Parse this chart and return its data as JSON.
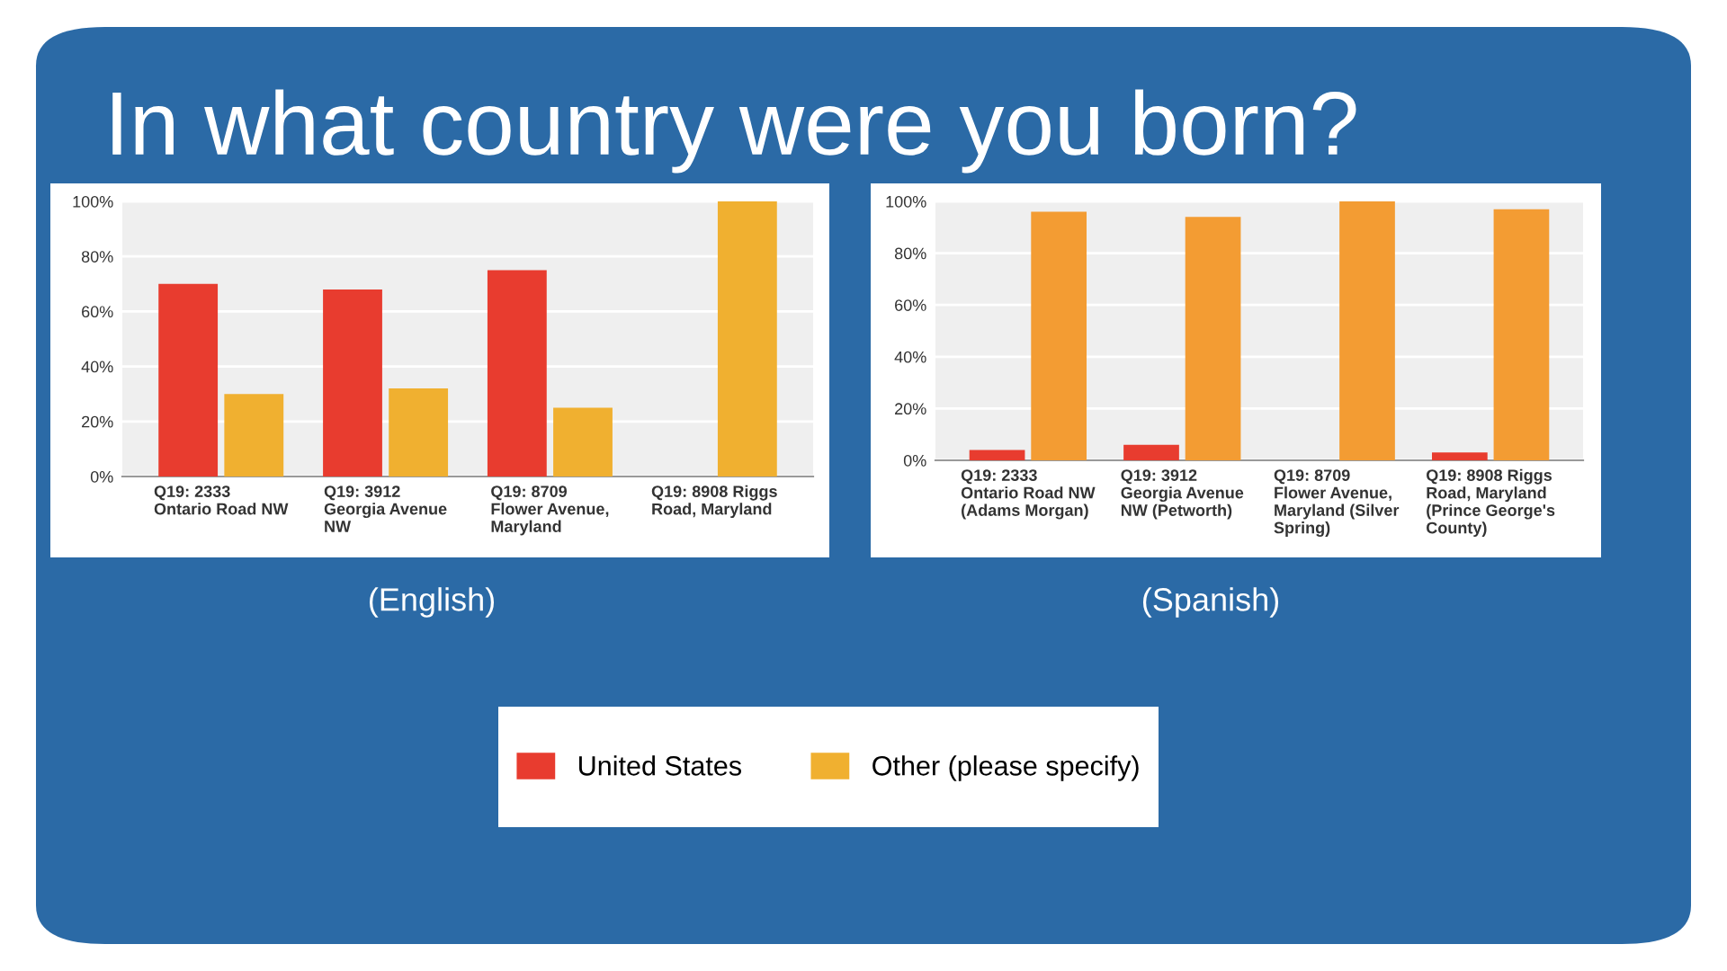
{
  "chart_data": [
    {
      "type": "bar",
      "title": "In what country were you born?",
      "subtitle": "(English)",
      "categories": [
        "Q19: 2333\nOntario Road NW",
        "Q19: 3912\nGeorgia Avenue\nNW",
        "Q19: 8709\nFlower Avenue,\nMaryland",
        "Q19: 8908 Riggs\nRoad, Maryland"
      ],
      "series": [
        {
          "name": "United States",
          "color": "#e83c2f",
          "values": [
            70,
            68,
            75,
            0
          ]
        },
        {
          "name": "Other (please specify)",
          "color": "#f0b030",
          "values": [
            30,
            32,
            25,
            100
          ]
        }
      ],
      "ylim": [
        0,
        100
      ],
      "yticks": [
        {
          "value": 0,
          "label": "0%"
        },
        {
          "value": 20,
          "label": "20%"
        },
        {
          "value": 40,
          "label": "40%"
        },
        {
          "value": 60,
          "label": "60%"
        },
        {
          "value": 80,
          "label": "80%"
        },
        {
          "value": 100,
          "label": "100%"
        }
      ],
      "grid": "y",
      "legend": "bottom"
    },
    {
      "type": "bar",
      "subtitle": "(Spanish)",
      "categories": [
        "Q19: 2333\nOntario Road NW\n(Adams Morgan)",
        "Q19: 3912\nGeorgia Avenue\nNW (Petworth)",
        "Q19: 8709\nFlower Avenue,\nMaryland (Silver\nSpring)",
        "Q19: 8908 Riggs\nRoad, Maryland\n(Prince George's\nCounty)"
      ],
      "series": [
        {
          "color": "#e83c2f",
          "values": [
            4,
            6,
            0,
            3
          ]
        },
        {
          "color": "#f39c33",
          "values": [
            96,
            94,
            100,
            97
          ]
        }
      ],
      "ylim": [
        0,
        100
      ],
      "yticks": [
        {
          "value": 0,
          "label": "0%"
        },
        {
          "value": 20,
          "label": "20%"
        },
        {
          "value": 40,
          "label": "40%"
        },
        {
          "value": 60,
          "label": "60%"
        },
        {
          "value": 80,
          "label": "80%"
        },
        {
          "value": 100,
          "label": "100%"
        }
      ],
      "grid": "y"
    }
  ]
}
